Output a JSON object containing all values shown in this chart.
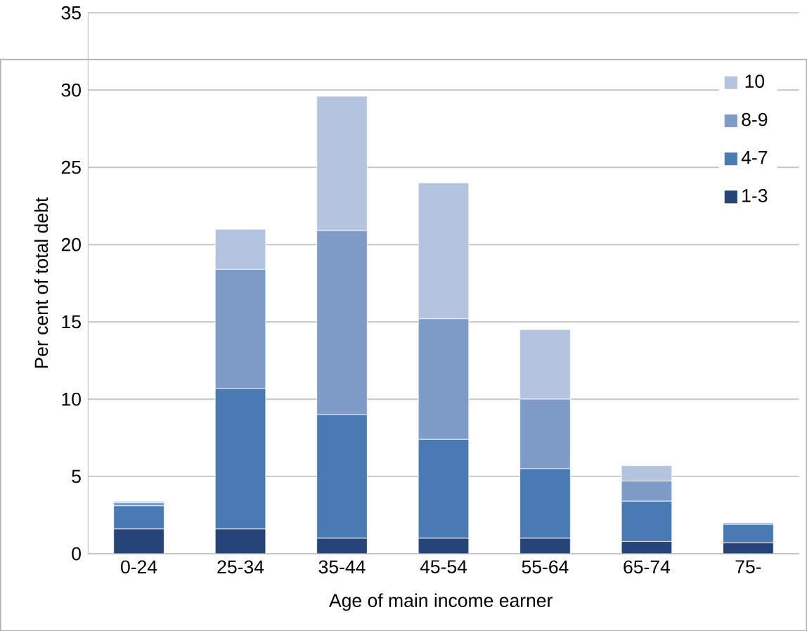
{
  "chart_data": {
    "type": "bar",
    "stacked": true,
    "xlabel": "Age of main income earner",
    "ylabel": "Per cent of total debt",
    "categories": [
      "0-24",
      "25-34",
      "35-44",
      "45-54",
      "55-64",
      "65-74",
      "75-"
    ],
    "series": [
      {
        "name": "1-3",
        "color": "#264478",
        "values": [
          1.6,
          1.6,
          1.0,
          1.0,
          1.0,
          0.8,
          0.7
        ]
      },
      {
        "name": "4-7",
        "color": "#4a7ab3",
        "values": [
          1.5,
          9.1,
          8.0,
          6.4,
          4.5,
          2.6,
          1.2
        ]
      },
      {
        "name": "8-9",
        "color": "#7f9bc8",
        "values": [
          0.2,
          7.7,
          11.9,
          7.8,
          4.5,
          1.3,
          0.1
        ]
      },
      {
        "name": "10",
        "color": "#b4c3de",
        "values": [
          0.1,
          2.6,
          8.7,
          8.8,
          4.5,
          1.0,
          0
        ]
      }
    ],
    "ylim": [
      0,
      35
    ],
    "yticks": [
      0,
      5,
      10,
      15,
      20,
      25,
      30,
      35
    ],
    "grid": "y",
    "legend": "right"
  }
}
